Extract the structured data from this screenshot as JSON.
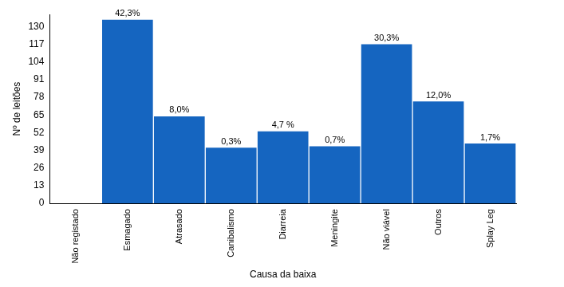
{
  "chart_data": {
    "type": "bar",
    "x_label": "Causa da baixa",
    "y_label": "Nº de leitões",
    "categories": [
      "Não registado",
      "Esmagado",
      "Atrasado",
      "Canibalismo",
      "Diarreia",
      "Meningite",
      "Não viável",
      "Outros",
      "Splay Leg"
    ],
    "values": [
      0,
      135,
      64,
      41,
      53,
      42,
      117,
      75,
      44
    ],
    "annotations": [
      null,
      "42,3%",
      "8,0%",
      "0,3%",
      "4,7 %",
      "0,7%",
      "30,3%",
      "12,0%",
      "1,7%"
    ],
    "color": "#1565c0",
    "ylim": [
      0,
      139
    ],
    "yticks": [
      0,
      13,
      26,
      39,
      52,
      65,
      78,
      91,
      104,
      117,
      130
    ],
    "grid": false
  }
}
